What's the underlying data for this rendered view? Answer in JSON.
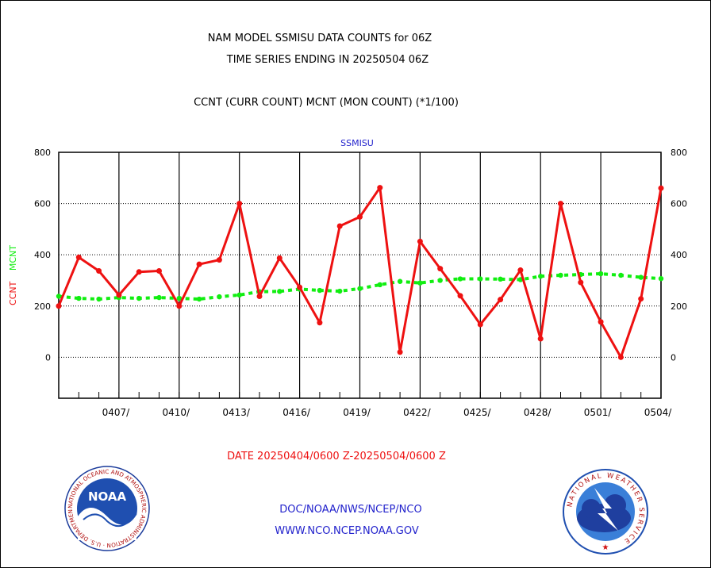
{
  "header": {
    "line1": "NAM MODEL SSMISU DATA COUNTS for 06Z",
    "line2": "TIME SERIES ENDING IN 20250504 06Z",
    "line3": "CCNT (CURR COUNT) MCNT (MON COUNT) (*1/100)"
  },
  "footer": {
    "date_range": "DATE 20250404/0600 Z-20250504/0600 Z",
    "org": "DOC/NOAA/NWS/NCEP/NCO",
    "url": "WWW.NCO.NCEP.NOAA.GOV"
  },
  "logos": {
    "noaa": "NOAA",
    "noaa_ring": "NATIONAL OCEANIC AND ATMOSPHERIC ADMINISTRATION · U.S. DEPARTMENT OF COMMERCE",
    "nws_ring": "NATIONAL WEATHER SERVICE"
  },
  "colors": {
    "ccnt": "#ee1111",
    "mcnt": "#11ee11",
    "title": "#000000",
    "date": "#ee1111",
    "footer_text": "#2222cc",
    "legend_title": "#2222cc"
  },
  "chart_data": {
    "type": "line",
    "title": "SSMISU",
    "ylabel_parts": [
      {
        "text": "CCNT",
        "color": "#ee1111"
      },
      {
        "text": "MCNT",
        "color": "#11ee11"
      }
    ],
    "xlabel": "DATE 20250404/0600 Z-20250504/0600 Z",
    "ylim": [
      -160,
      800
    ],
    "yticks": [
      0,
      200,
      400,
      600,
      800
    ],
    "xlim": [
      0,
      30
    ],
    "xticks": [
      {
        "x": 3,
        "label": "0407/"
      },
      {
        "x": 6,
        "label": "0410/"
      },
      {
        "x": 9,
        "label": "0413/"
      },
      {
        "x": 12,
        "label": "0416/"
      },
      {
        "x": 15,
        "label": "0419/"
      },
      {
        "x": 18,
        "label": "0422/"
      },
      {
        "x": 21,
        "label": "0425/"
      },
      {
        "x": 24,
        "label": "0428/"
      },
      {
        "x": 27,
        "label": "0501/"
      },
      {
        "x": 30,
        "label": "0504/"
      }
    ],
    "grid": true,
    "series": [
      {
        "name": "CCNT",
        "color": "#ee1111",
        "x": [
          0,
          1,
          2,
          3,
          4,
          5,
          6,
          7,
          8,
          9,
          10,
          11,
          12,
          13,
          14,
          15,
          16,
          17,
          18,
          19,
          20,
          21,
          22,
          23,
          24,
          25,
          26,
          27,
          28,
          29,
          30
        ],
        "values": [
          200,
          390,
          337,
          243,
          333,
          337,
          200,
          363,
          380,
          600,
          238,
          387,
          273,
          135,
          512,
          548,
          662,
          20,
          452,
          346,
          240,
          128,
          225,
          340,
          72,
          600,
          292,
          138,
          0,
          228,
          660
        ]
      },
      {
        "name": "MCNT",
        "color": "#11ee11",
        "x": [
          0,
          1,
          2,
          3,
          4,
          5,
          6,
          7,
          8,
          9,
          10,
          11,
          12,
          13,
          14,
          15,
          16,
          17,
          18,
          19,
          20,
          21,
          22,
          23,
          24,
          25,
          26,
          27,
          28,
          29,
          30
        ],
        "values": [
          238,
          230,
          227,
          233,
          230,
          233,
          230,
          227,
          236,
          243,
          256,
          257,
          266,
          261,
          258,
          268,
          283,
          296,
          290,
          300,
          306,
          306,
          305,
          303,
          316,
          320,
          323,
          326,
          320,
          312,
          307
        ]
      }
    ]
  }
}
